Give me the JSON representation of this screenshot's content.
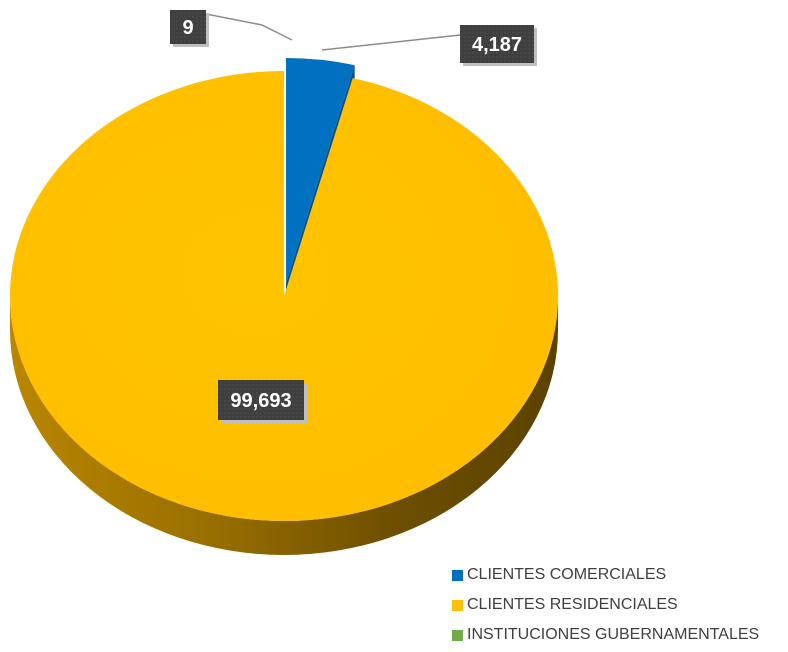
{
  "chart_data": {
    "type": "pie",
    "title": "",
    "legend_position": "bottom-right",
    "categories": [
      "CLIENTES COMERCIALES",
      "CLIENTES RESIDENCIALES",
      "INSTITUCIONES GUBERNAMENTALES"
    ],
    "values": [
      4187,
      99693,
      9
    ],
    "value_labels": [
      "4,187",
      "99,693",
      "9"
    ],
    "colors": [
      "#0070C0",
      "#FFC000",
      "#70AD47"
    ],
    "exploded": [
      "CLIENTES COMERCIALES"
    ]
  }
}
